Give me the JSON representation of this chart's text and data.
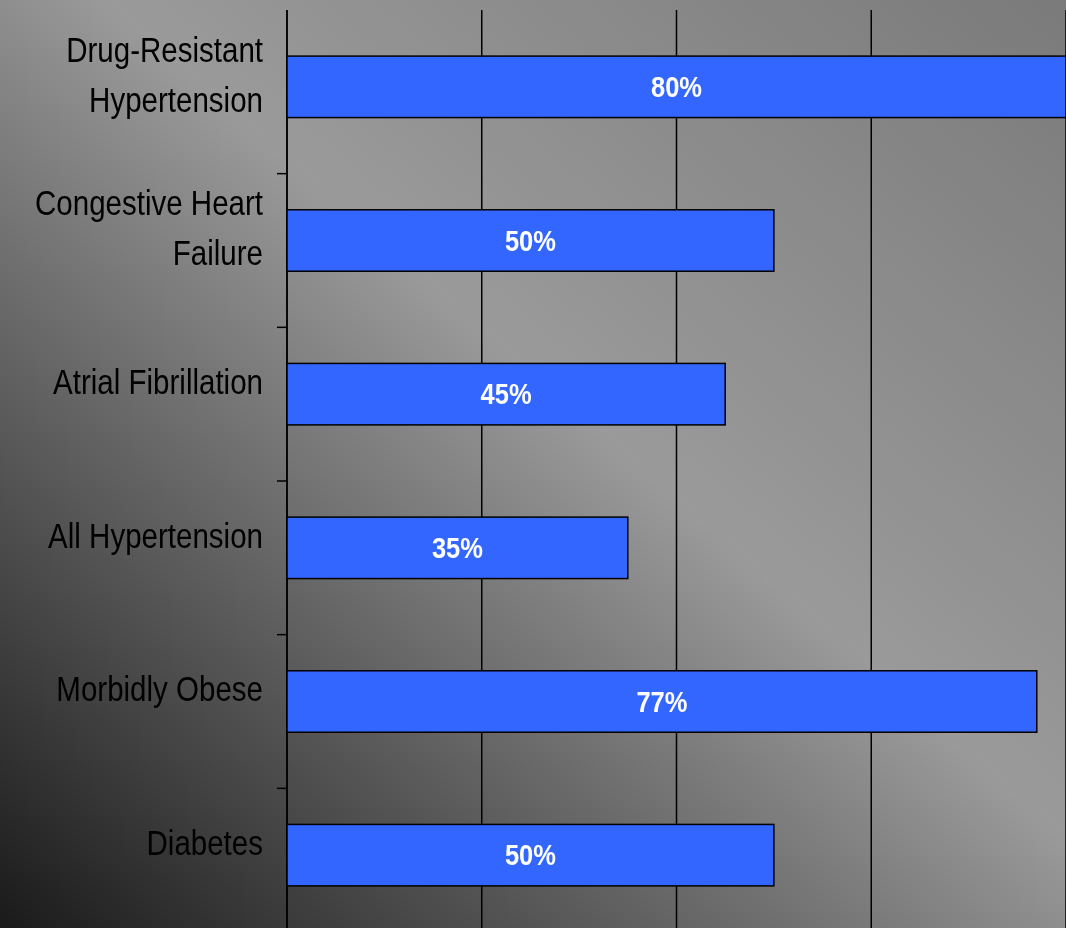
{
  "chart_data": {
    "type": "bar",
    "orientation": "horizontal",
    "categories": [
      "Drug-Resistant Hypertension",
      "Congestive Heart Failure",
      "Atrial Fibrillation",
      "All Hypertension",
      "Morbidly Obese",
      "Diabetes"
    ],
    "values": [
      80,
      50,
      45,
      35,
      77,
      50
    ],
    "value_labels": [
      "80%",
      "50%",
      "45%",
      "35%",
      "77%",
      "50%"
    ],
    "color": "#3366ff",
    "xlim": [
      0,
      80
    ],
    "xticks": [
      {
        "value": 0,
        "label": null
      },
      {
        "value": 20,
        "label": null
      },
      {
        "value": 40,
        "label": null
      },
      {
        "value": 60,
        "label": null
      },
      {
        "value": 80,
        "label": null
      }
    ],
    "grid": "x"
  }
}
